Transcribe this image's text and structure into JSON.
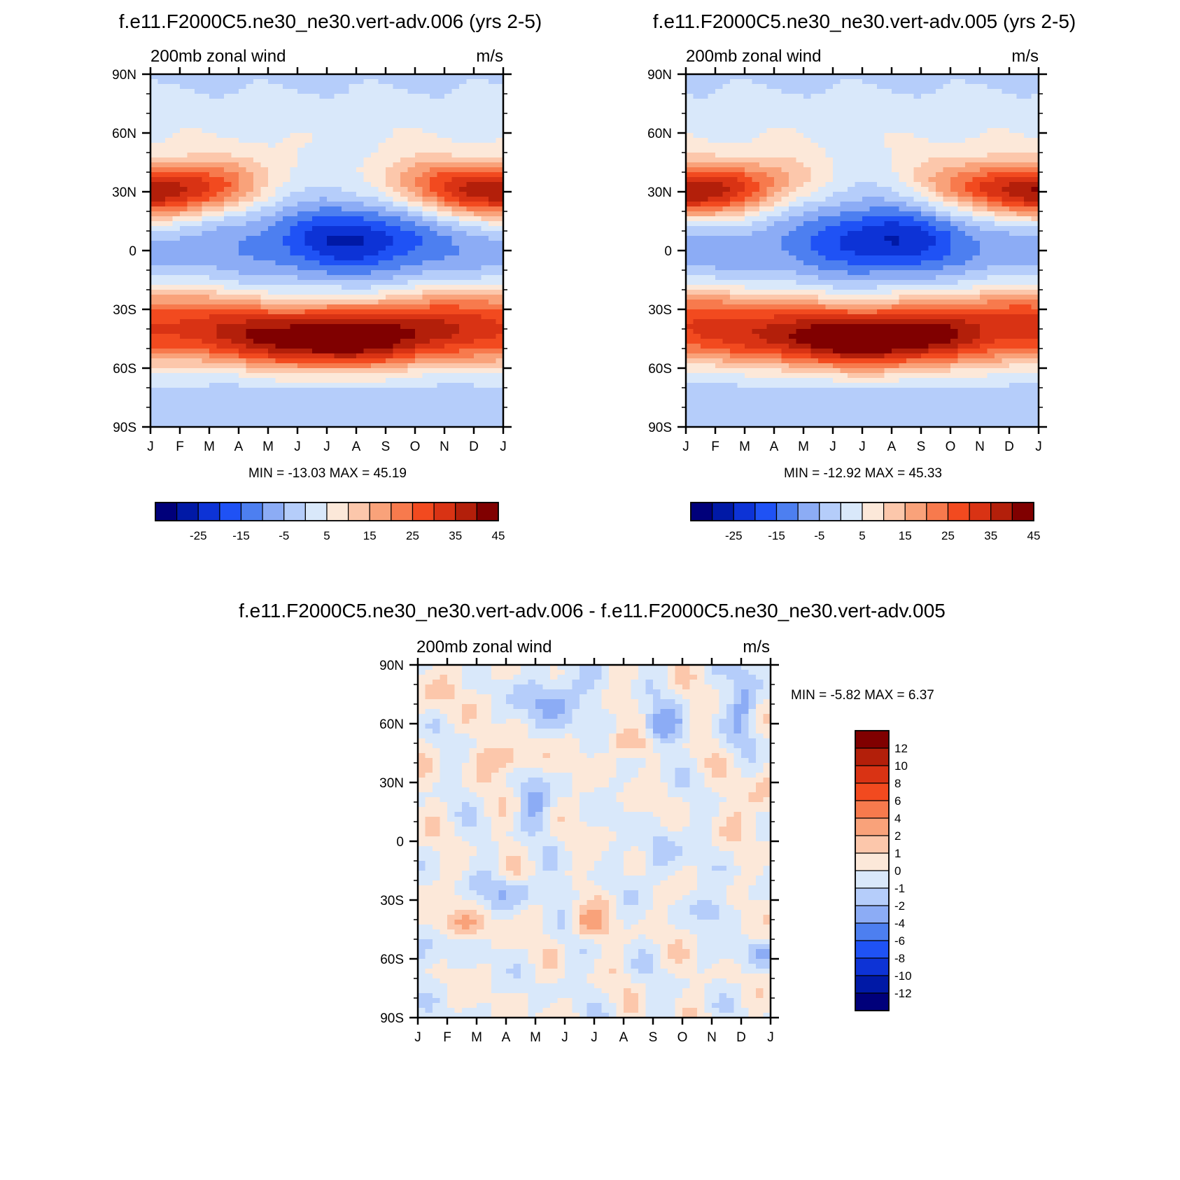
{
  "colors": {
    "palette": [
      "#00007a",
      "#0019a6",
      "#0d33d6",
      "#1f52f5",
      "#4d7ff0",
      "#8cacf5",
      "#b5cdfa",
      "#d9e8fa",
      "#fce8d9",
      "#fcc7ab",
      "#f9a27a",
      "#f77a4d",
      "#f24a1f",
      "#d93314",
      "#b31f0a",
      "#800000"
    ],
    "diff_palette": [
      "#00007a",
      "#0019a6",
      "#0d33d6",
      "#1f52f5",
      "#4d7ff0",
      "#8cacf5",
      "#b5cdfa",
      "#d9e8fa",
      "#fce8d9",
      "#fcc7ab",
      "#f9a27a",
      "#f77a4d",
      "#f24a1f",
      "#d93314",
      "#b31f0a",
      "#800000"
    ]
  },
  "panels": {
    "p1": {
      "title": "f.e11.F2000C5.ne30_ne30.vert-adv.006 (yrs 2-5)",
      "left_label": "200mb zonal wind",
      "right_label": "m/s",
      "stats": "MIN = -13.03 MAX =  45.19"
    },
    "p2": {
      "title": "f.e11.F2000C5.ne30_ne30.vert-adv.005 (yrs 2-5)",
      "left_label": "200mb zonal wind",
      "right_label": "m/s",
      "stats": "MIN = -12.92 MAX =  45.33"
    },
    "p3": {
      "title": "f.e11.F2000C5.ne30_ne30.vert-adv.006 - f.e11.F2000C5.ne30_ne30.vert-adv.005",
      "left_label": "200mb zonal wind",
      "right_label": "m/s",
      "stats": "MIN =  -5.82 MAX =   6.37"
    }
  },
  "chart_data": [
    {
      "type": "heatmap",
      "title": "f.e11.F2000C5.ne30_ne30.vert-adv.006 (yrs 2-5)",
      "variable": "200mb zonal wind",
      "units": "m/s",
      "x_ticks": [
        "J",
        "F",
        "M",
        "A",
        "M",
        "J",
        "J",
        "A",
        "S",
        "O",
        "N",
        "D",
        "J"
      ],
      "y_ticks": [
        "90N",
        "60N",
        "30N",
        "0",
        "30S",
        "60S",
        "90S"
      ],
      "ylim": [
        -90,
        90
      ],
      "levels": [
        -30,
        -25,
        -20,
        -15,
        -10,
        -5,
        0,
        5,
        10,
        15,
        20,
        25,
        30,
        35,
        40,
        45
      ],
      "colorbar_labels": [
        "-25",
        "-15",
        "-5",
        "5",
        "15",
        "25",
        "35",
        "45"
      ],
      "min": -13.03,
      "max": 45.19
    },
    {
      "type": "heatmap",
      "title": "f.e11.F2000C5.ne30_ne30.vert-adv.005 (yrs 2-5)",
      "variable": "200mb zonal wind",
      "units": "m/s",
      "x_ticks": [
        "J",
        "F",
        "M",
        "A",
        "M",
        "J",
        "J",
        "A",
        "S",
        "O",
        "N",
        "D",
        "J"
      ],
      "y_ticks": [
        "90N",
        "60N",
        "30N",
        "0",
        "30S",
        "60S",
        "90S"
      ],
      "ylim": [
        -90,
        90
      ],
      "levels": [
        -30,
        -25,
        -20,
        -15,
        -10,
        -5,
        0,
        5,
        10,
        15,
        20,
        25,
        30,
        35,
        40,
        45
      ],
      "colorbar_labels": [
        "-25",
        "-15",
        "-5",
        "5",
        "15",
        "25",
        "35",
        "45"
      ],
      "min": -12.92,
      "max": 45.33
    },
    {
      "type": "heatmap",
      "title": "f.e11.F2000C5.ne30_ne30.vert-adv.006 - f.e11.F2000C5.ne30_ne30.vert-adv.005",
      "variable": "200mb zonal wind",
      "units": "m/s",
      "x_ticks": [
        "J",
        "F",
        "M",
        "A",
        "M",
        "J",
        "J",
        "A",
        "S",
        "O",
        "N",
        "D",
        "J"
      ],
      "y_ticks": [
        "90N",
        "60N",
        "30N",
        "0",
        "30S",
        "60S",
        "90S"
      ],
      "ylim": [
        -90,
        90
      ],
      "levels": [
        -12,
        -10,
        -8,
        -6,
        -4,
        -2,
        -1,
        0,
        1,
        2,
        4,
        6,
        8,
        10,
        12
      ],
      "colorbar_labels": [
        "12",
        "10",
        "8",
        "6",
        "4",
        "2",
        "1",
        "0",
        "-1",
        "-2",
        "-4",
        "-6",
        "-8",
        "-10",
        "-12"
      ],
      "min": -5.82,
      "max": 6.37
    }
  ]
}
